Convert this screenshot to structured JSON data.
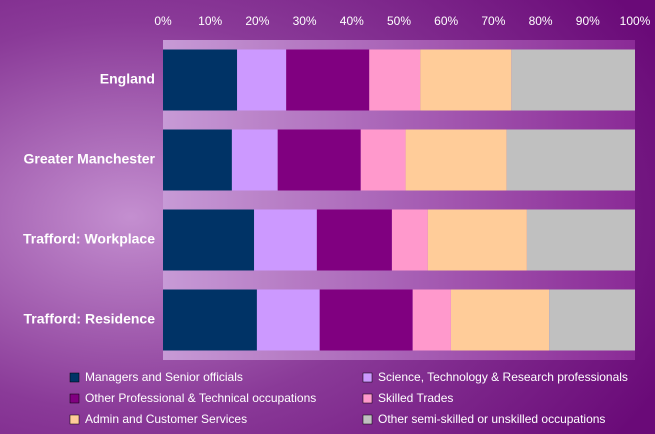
{
  "chart_data": {
    "type": "bar",
    "orientation": "horizontal",
    "stacked": true,
    "categories": [
      "England",
      "Greater Manchester",
      "Trafford: Workplace",
      "Trafford: Residence"
    ],
    "series": [
      {
        "name": "Managers and Senior officials",
        "color": "#003366",
        "values": [
          15.7,
          14.6,
          19.3,
          19.9
        ]
      },
      {
        "name": "Science, Technology & Research professionals",
        "color": "#cc99ff",
        "values": [
          10.4,
          9.7,
          13.3,
          13.3
        ]
      },
      {
        "name": "Other Professional & Technical occupations",
        "color": "#800080",
        "values": [
          17.6,
          17.6,
          15.9,
          19.7
        ]
      },
      {
        "name": "Skilled Trades",
        "color": "#ff99cc",
        "values": [
          10.8,
          9.5,
          7.6,
          8.1
        ]
      },
      {
        "name": "Admin and Customer Services",
        "color": "#ffcc99",
        "values": [
          19.3,
          21.4,
          21.0,
          20.8
        ]
      },
      {
        "name": "Other semi-skilled or unskilled occupations",
        "color": "#c0c0c0",
        "values": [
          26.2,
          27.2,
          22.9,
          18.2
        ]
      }
    ],
    "xlim": [
      0,
      100
    ],
    "xticks": [
      {
        "value": 0,
        "label": "0%"
      },
      {
        "value": 10,
        "label": "10%"
      },
      {
        "value": 20,
        "label": "20%"
      },
      {
        "value": 30,
        "label": "30%"
      },
      {
        "value": 40,
        "label": "40%"
      },
      {
        "value": 50,
        "label": "50%"
      },
      {
        "value": 60,
        "label": "60%"
      },
      {
        "value": 70,
        "label": "70%"
      },
      {
        "value": 80,
        "label": "80%"
      },
      {
        "value": 90,
        "label": "90%"
      },
      {
        "value": 100,
        "label": "100%"
      }
    ],
    "legend": "bottom"
  }
}
